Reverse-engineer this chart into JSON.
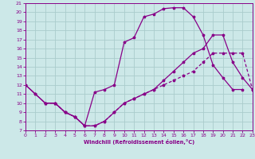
{
  "bg_color": "#cce8e8",
  "grid_color": "#aacccc",
  "line_color": "#880088",
  "xlabel": "Windchill (Refroidissement éolien,°C)",
  "xlim": [
    0,
    23
  ],
  "ylim": [
    7,
    21
  ],
  "xticks": [
    0,
    1,
    2,
    3,
    4,
    5,
    6,
    7,
    8,
    9,
    10,
    11,
    12,
    13,
    14,
    15,
    16,
    17,
    18,
    19,
    20,
    21,
    22,
    23
  ],
  "yticks": [
    7,
    8,
    9,
    10,
    11,
    12,
    13,
    14,
    15,
    16,
    17,
    18,
    19,
    20,
    21
  ],
  "curve1_x": [
    0,
    1,
    2,
    3,
    4,
    5,
    6,
    7,
    8,
    9,
    10,
    11,
    12,
    13,
    14,
    15,
    16,
    17,
    18,
    19,
    20,
    21,
    22
  ],
  "curve1_y": [
    12,
    11,
    10,
    10,
    9.0,
    8.5,
    7.5,
    11.2,
    11.5,
    12.0,
    16.7,
    17.2,
    19.5,
    19.8,
    20.4,
    20.5,
    20.5,
    19.5,
    17.5,
    14.2,
    12.8,
    11.5,
    11.5
  ],
  "curve2_x": [
    0,
    1,
    2,
    3,
    4,
    5,
    6,
    7,
    8,
    9,
    10,
    11,
    12,
    13,
    14,
    15,
    16,
    17,
    18,
    19,
    20,
    21,
    22,
    23
  ],
  "curve2_y": [
    12,
    11,
    10,
    10,
    9.0,
    8.5,
    7.5,
    7.5,
    8.0,
    9.0,
    10.0,
    10.5,
    11.0,
    11.5,
    12.5,
    13.5,
    14.5,
    15.5,
    16.0,
    17.5,
    17.5,
    14.5,
    12.8,
    11.5
  ],
  "curve3_x": [
    2,
    3,
    4,
    5,
    6,
    7,
    8,
    9,
    10,
    11,
    12,
    13,
    14,
    15,
    16,
    17,
    18,
    19,
    20,
    21,
    22,
    23
  ],
  "curve3_y": [
    10,
    10,
    9.0,
    8.5,
    7.5,
    7.5,
    8.0,
    9.0,
    10.0,
    10.5,
    11.0,
    11.5,
    12.0,
    12.5,
    13.0,
    13.5,
    14.5,
    15.5,
    15.5,
    15.5,
    15.5,
    11.5
  ]
}
